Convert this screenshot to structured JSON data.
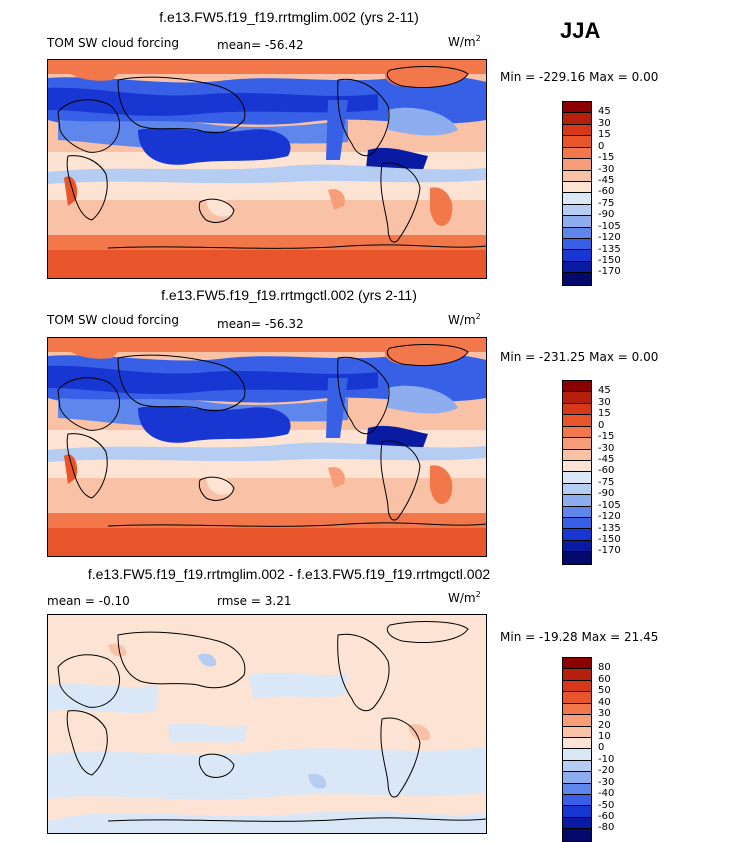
{
  "season": "JJA",
  "panels": [
    {
      "title": "f.e13.FW5.f19_f19.rrtmglim.002 (yrs 2-11)",
      "field": "TOM SW cloud forcing",
      "mean_label": "mean=",
      "mean": "-56.42",
      "units": "W/m",
      "units_exp": "2",
      "min_label": "Min =",
      "min": "-229.16",
      "max_label": "Max =",
      "max": "0.00",
      "colorbar_levels": [
        "45",
        "30",
        "15",
        "0",
        "-15",
        "-30",
        "-45",
        "-60",
        "-75",
        "-90",
        "-105",
        "-120",
        "-135",
        "-150",
        "-170"
      ]
    },
    {
      "title": "f.e13.FW5.f19_f19.rrtmgctl.002 (yrs 2-11)",
      "field": "TOM SW cloud forcing",
      "mean_label": "mean=",
      "mean": "-56.32",
      "units": "W/m",
      "units_exp": "2",
      "min_label": "Min =",
      "min": "-231.25",
      "max_label": "Max =",
      "max": "0.00",
      "colorbar_levels": [
        "45",
        "30",
        "15",
        "0",
        "-15",
        "-30",
        "-45",
        "-60",
        "-75",
        "-90",
        "-105",
        "-120",
        "-135",
        "-150",
        "-170"
      ]
    },
    {
      "title": "f.e13.FW5.f19_f19.rrtmglim.002 - f.e13.FW5.f19_f19.rrtmgctl.002",
      "mean_label": "mean =",
      "mean": "-0.10",
      "rmse_label": "rmse =",
      "rmse": "3.21",
      "units": "W/m",
      "units_exp": "2",
      "min_label": "Min =",
      "min": "-19.28",
      "max_label": "Max =",
      "max": "21.45",
      "colorbar_levels": [
        "80",
        "60",
        "50",
        "40",
        "30",
        "20",
        "10",
        "0",
        "-10",
        "-20",
        "-30",
        "-40",
        "-50",
        "-60",
        "-80"
      ]
    }
  ],
  "colors": {
    "colorbar": [
      "#8b0000",
      "#b4200c",
      "#d8381a",
      "#e9552a",
      "#f2784b",
      "#f69e7a",
      "#f9c2a7",
      "#fde3d3",
      "#d9e7f7",
      "#b5cdf3",
      "#8eadef",
      "#5f86ea",
      "#3860e6",
      "#1836d1",
      "#0a1ba3",
      "#030a6b"
    ]
  }
}
